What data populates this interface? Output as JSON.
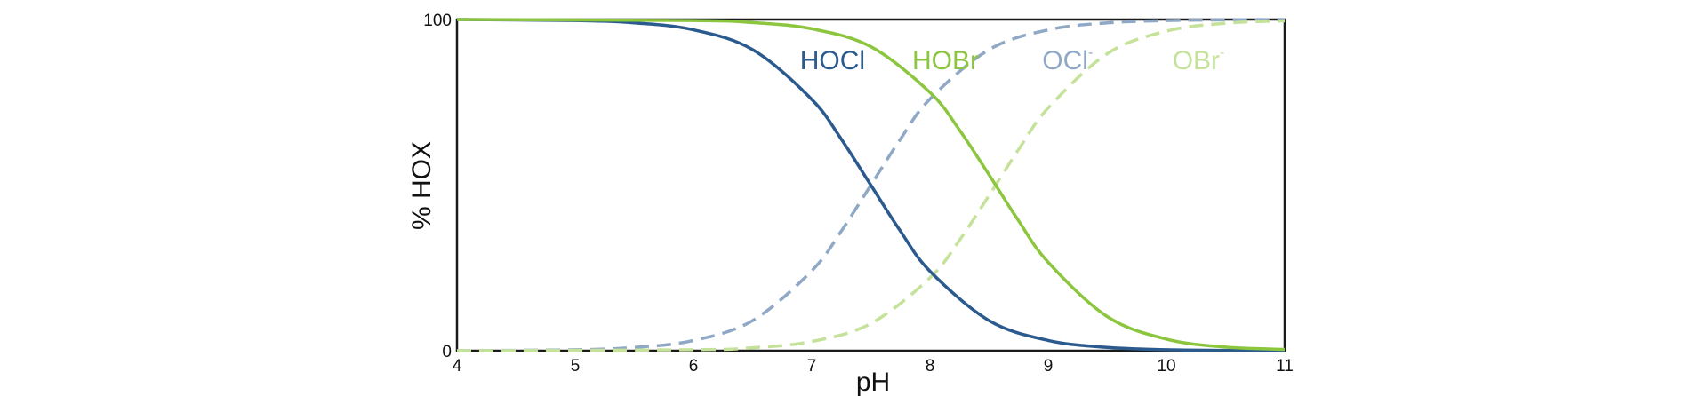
{
  "chart_data": {
    "type": "line",
    "title": "",
    "xlabel": "pH",
    "ylabel": "% HOX",
    "xlim": [
      4,
      11
    ],
    "ylim": [
      0,
      100
    ],
    "x_ticks": [
      "4",
      "5",
      "6",
      "7",
      "8",
      "9",
      "10",
      "11"
    ],
    "y_ticks": [
      "0",
      "100"
    ],
    "grid": false,
    "legend": "inline labels near curves",
    "series": [
      {
        "name": "HOCl",
        "name_base": "HOCl",
        "name_sup": "",
        "style": "solid",
        "color": "#2a5a8e",
        "x": [
          4,
          5,
          5.5,
          6,
          6.5,
          7,
          7.25,
          7.5,
          7.75,
          8,
          8.5,
          9,
          9.5,
          10,
          10.5,
          11
        ],
        "y": [
          100,
          99.7,
          99,
          96.9,
          90.9,
          75.9,
          63.9,
          50,
          36.1,
          24.0,
          9.1,
          3.1,
          1.0,
          0.3,
          0.1,
          0
        ]
      },
      {
        "name": "HOBr",
        "name_base": "HOBr",
        "name_sup": "",
        "style": "solid",
        "color": "#8cc63f",
        "x": [
          4,
          6,
          6.5,
          7,
          7.5,
          8,
          8.25,
          8.5,
          8.75,
          9,
          9.5,
          10,
          10.5,
          11
        ],
        "y": [
          100,
          99.7,
          99.1,
          97.2,
          91.8,
          78.0,
          66.6,
          53.1,
          39.2,
          26.7,
          10.3,
          3.5,
          1.1,
          0.4
        ]
      },
      {
        "name": "OCl-",
        "name_base": "OCl",
        "name_sup": "-",
        "style": "dashed",
        "color": "#8fa8c6",
        "x": [
          4,
          5,
          5.5,
          6,
          6.5,
          7,
          7.25,
          7.5,
          7.75,
          8,
          8.5,
          9,
          9.5,
          10,
          10.5,
          11
        ],
        "y": [
          0,
          0.3,
          1,
          3.1,
          9.1,
          24.1,
          36.1,
          50,
          63.9,
          76.0,
          90.9,
          96.9,
          99.0,
          99.7,
          99.9,
          100
        ]
      },
      {
        "name": "OBr-",
        "name_base": "OBr",
        "name_sup": "-",
        "style": "dashed",
        "color": "#c5e29a",
        "x": [
          4,
          6,
          6.5,
          7,
          7.5,
          8,
          8.25,
          8.5,
          8.75,
          9,
          9.5,
          10,
          10.5,
          11
        ],
        "y": [
          0,
          0.3,
          0.9,
          2.8,
          8.2,
          22.0,
          33.4,
          46.9,
          60.8,
          73.3,
          89.7,
          96.5,
          98.9,
          99.6
        ]
      }
    ],
    "labels": [
      {
        "series": "HOCl",
        "x": 6.9,
        "y": 85
      },
      {
        "series": "HOBr",
        "x": 7.85,
        "y": 85
      },
      {
        "series": "OCl-",
        "x": 8.95,
        "y": 85
      },
      {
        "series": "OBr-",
        "x": 10.05,
        "y": 85
      }
    ]
  }
}
